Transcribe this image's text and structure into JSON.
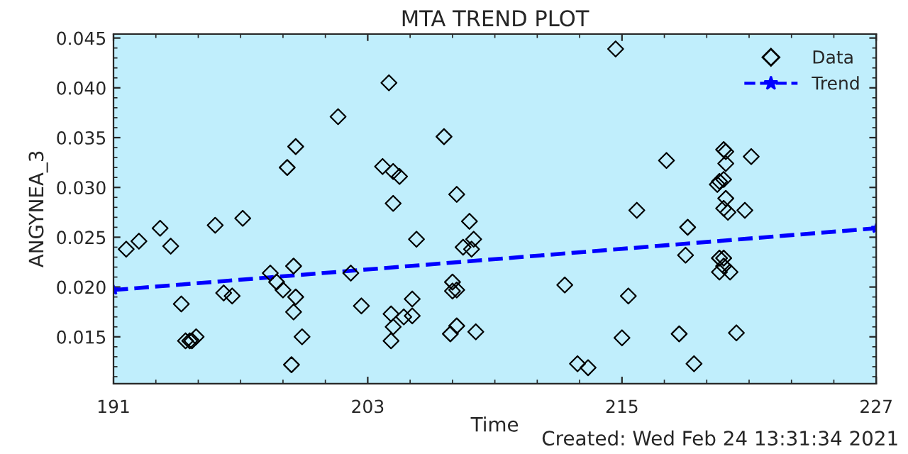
{
  "chart_data": {
    "type": "scatter",
    "title": "MTA TREND PLOT",
    "xlabel": "Time",
    "ylabel": "ANGYNEA_3",
    "annotations": [
      "Created: Wed Feb 24 13:31:34 2021"
    ],
    "xlim": [
      191,
      227
    ],
    "xticks": [
      191,
      203,
      215,
      227
    ],
    "ylim": [
      0.0103,
      0.0454
    ],
    "yticks": [
      0.015,
      {
        "value": 0.02,
        "label": "0.020"
      },
      0.025,
      {
        "value": 0.03,
        "label": "0.030"
      },
      0.035,
      {
        "value": 0.04,
        "label": "0.040"
      },
      0.045
    ],
    "grid": false,
    "legend": "top right",
    "series": [
      {
        "name": "Data",
        "marker": "diamond",
        "color": "#000000",
        "x": [
          191.6,
          192.2,
          193.2,
          193.7,
          194.2,
          194.4,
          194.6,
          194.7,
          194.9,
          195.8,
          196.2,
          196.6,
          197.1,
          198.4,
          198.7,
          199.0,
          199.2,
          199.4,
          199.5,
          199.5,
          199.6,
          199.6,
          199.9,
          201.6,
          202.2,
          202.7,
          203.7,
          204.0,
          204.1,
          204.1,
          204.2,
          204.2,
          204.2,
          204.5,
          204.7,
          205.1,
          205.1,
          205.3,
          206.6,
          206.9,
          207.0,
          207.0,
          207.2,
          207.2,
          207.2,
          207.5,
          207.8,
          208.0,
          207.9,
          208.1,
          212.3,
          212.9,
          213.4,
          214.7,
          215.0,
          215.3,
          215.7,
          217.1,
          217.7,
          218.0,
          218.1,
          218.4,
          219.5,
          219.6,
          219.8,
          219.6,
          219.8,
          219.6,
          219.8,
          220.1,
          219.8,
          219.9,
          219.9,
          219.9,
          219.8,
          220.0,
          220.4,
          220.8,
          221.1
        ],
        "values": [
          0.0238,
          0.0246,
          0.0259,
          0.0241,
          0.0183,
          0.0146,
          0.0146,
          0.0146,
          0.015,
          0.0262,
          0.0194,
          0.0191,
          0.0269,
          0.0214,
          0.0205,
          0.0197,
          0.032,
          0.0122,
          0.0175,
          0.0221,
          0.019,
          0.0341,
          0.015,
          0.0371,
          0.0214,
          0.0181,
          0.0321,
          0.0405,
          0.0173,
          0.0146,
          0.0316,
          0.016,
          0.0284,
          0.0311,
          0.017,
          0.0188,
          0.0171,
          0.0248,
          0.0351,
          0.0153,
          0.0205,
          0.0196,
          0.0161,
          0.0293,
          0.0197,
          0.024,
          0.0266,
          0.0248,
          0.0238,
          0.0155,
          0.0202,
          0.0123,
          0.0119,
          0.0439,
          0.0149,
          0.0191,
          0.0277,
          0.0327,
          0.0153,
          0.0232,
          0.026,
          0.0123,
          0.0303,
          0.0306,
          0.0308,
          0.0229,
          0.0229,
          0.0215,
          0.0221,
          0.0215,
          0.0338,
          0.0336,
          0.0324,
          0.0289,
          0.0279,
          0.0275,
          0.0154,
          0.0277,
          0.0331
        ]
      },
      {
        "name": "Trend",
        "type": "line",
        "marker": "star",
        "line_style": "dashed",
        "color": "#0000ff",
        "x": [
          191,
          227
        ],
        "values": [
          0.0197,
          0.0259
        ]
      }
    ]
  }
}
